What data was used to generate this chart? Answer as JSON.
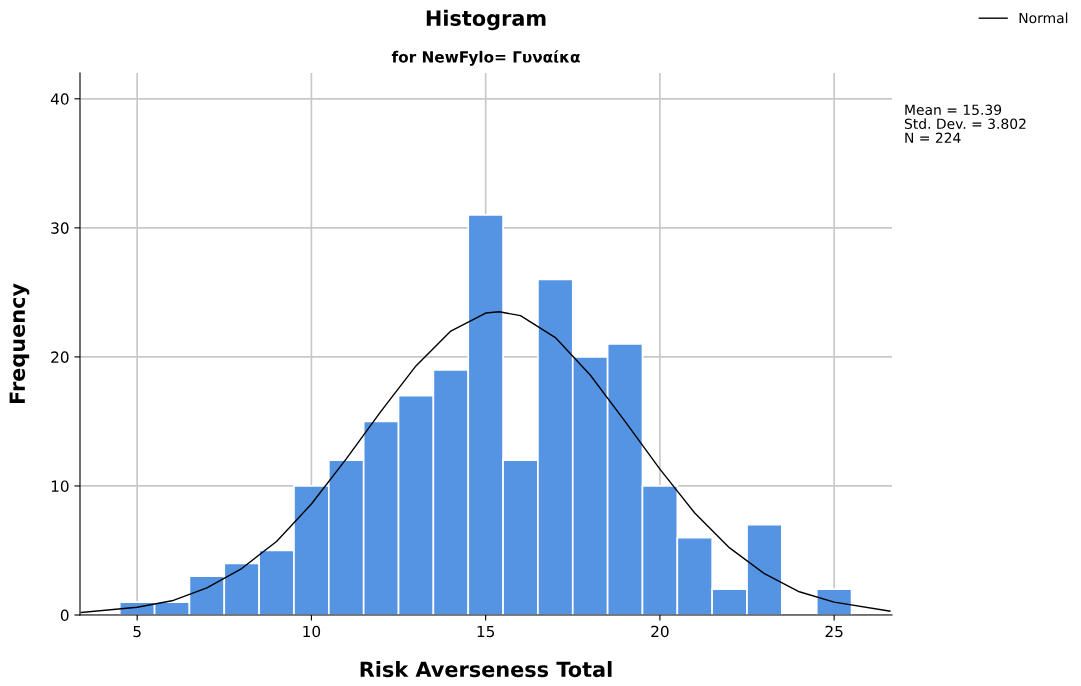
{
  "chart_data": {
    "type": "histogram",
    "title": "Histogram",
    "subtitle": "for NewFylo= Γυναίκα",
    "xlabel": "Risk Averseness Total",
    "ylabel": "Frequency",
    "bins": [
      4.5,
      5.5,
      6.5,
      7.5,
      8.5,
      9.5,
      10.5,
      11.5,
      12.5,
      13.5,
      14.5,
      15.5,
      16.5,
      17.5,
      18.5,
      19.5,
      20.5,
      21.5,
      22.5,
      23.5,
      24.5,
      25.5
    ],
    "values": [
      1,
      1,
      3,
      4,
      5,
      10,
      12,
      15,
      17,
      19,
      31,
      12,
      26,
      20,
      21,
      10,
      6,
      2,
      7,
      0,
      2
    ],
    "color": "#5593e3",
    "series": [
      {
        "name": "Normal",
        "type": "line",
        "color": "#000000",
        "x": [
          3.4,
          5,
          6,
          7,
          8,
          9,
          10,
          11,
          12,
          13,
          14,
          15,
          15.39,
          16,
          17,
          18,
          19,
          20,
          21,
          22,
          23,
          24,
          25,
          26.6
        ],
        "values": [
          0.2,
          0.6,
          1.1,
          2.1,
          3.6,
          5.7,
          8.6,
          12.1,
          15.8,
          19.3,
          22.0,
          23.4,
          23.5,
          23.2,
          21.5,
          18.6,
          15.0,
          11.3,
          7.9,
          5.2,
          3.2,
          1.8,
          1.0,
          0.3
        ]
      }
    ],
    "xlim": [
      3.36,
      26.66
    ],
    "xticks": [
      5,
      10,
      15,
      20,
      25
    ],
    "ylim": [
      0,
      42
    ],
    "yticks": [
      0,
      10,
      20,
      30,
      40
    ],
    "grid": true,
    "legend": "top right",
    "annotations": [
      "Mean = 15.39",
      "Std. Dev. = 3.802",
      "N = 224"
    ]
  }
}
